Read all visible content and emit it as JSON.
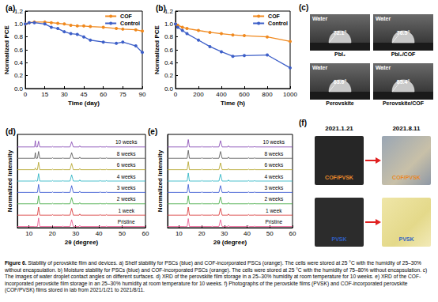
{
  "chart_data": [
    {
      "type": "line",
      "title": "(a)",
      "xlabel": "Time (day)",
      "ylabel": "Normalized PCE",
      "xlim": [
        0,
        90
      ],
      "xticks": [
        0,
        15,
        30,
        45,
        60,
        75,
        90
      ],
      "ylim": [
        0,
        1.2
      ],
      "yticks": [
        {
          "value": 0,
          "label": "0.0"
        },
        0.2,
        0.4,
        0.6,
        0.8,
        {
          "value": 1,
          "label": "1.0"
        },
        1.2
      ],
      "grid": false,
      "legend": "upper right",
      "x": [
        0,
        3,
        7,
        15,
        20,
        25,
        30,
        35,
        40,
        45,
        50,
        60,
        70,
        75,
        85,
        90
      ],
      "series": [
        {
          "name": "COF",
          "color": "#f0891e",
          "marker": "circle",
          "values": [
            1.0,
            1.02,
            1.03,
            1.03,
            1.02,
            1.01,
            1.0,
            0.98,
            0.97,
            0.97,
            0.96,
            0.95,
            0.93,
            0.92,
            0.91,
            0.89
          ]
        },
        {
          "name": "Control",
          "color": "#3d5fc8",
          "marker": "circle",
          "values": [
            1.0,
            1.02,
            1.02,
            1.0,
            0.95,
            0.93,
            0.88,
            0.85,
            0.84,
            0.8,
            0.75,
            0.72,
            0.7,
            0.72,
            0.66,
            0.56
          ]
        }
      ]
    },
    {
      "type": "line",
      "title": "(b)",
      "xlabel": "Time (h)",
      "ylabel": "Normalized PCE",
      "xlim": [
        0,
        1000
      ],
      "xticks": [
        0,
        200,
        400,
        600,
        800,
        1000
      ],
      "ylim": [
        0,
        1.2
      ],
      "yticks": [
        {
          "value": 0,
          "label": "0.0"
        },
        0.2,
        0.4,
        0.6,
        0.8,
        {
          "value": 1,
          "label": "1.0"
        },
        1.2
      ],
      "grid": false,
      "legend": "upper right",
      "x": [
        0,
        20,
        60,
        100,
        200,
        300,
        400,
        500,
        600,
        800,
        1000
      ],
      "series": [
        {
          "name": "COF",
          "color": "#f0891e",
          "marker": "circle",
          "values": [
            1.0,
            0.98,
            0.95,
            0.93,
            0.9,
            0.87,
            0.85,
            0.83,
            0.82,
            0.8,
            0.73
          ]
        },
        {
          "name": "Control",
          "color": "#3d5fc8",
          "marker": "circle",
          "values": [
            1.0,
            0.95,
            0.9,
            0.85,
            0.75,
            0.65,
            0.57,
            0.5,
            0.51,
            0.52,
            0.32
          ]
        }
      ]
    },
    {
      "type": "line",
      "title": "(d)",
      "xlabel": "2θ (degree)",
      "ylabel": "Normalized Intensity",
      "xlim": [
        5,
        60
      ],
      "xticks": [
        10,
        20,
        30,
        40,
        50,
        60
      ],
      "ylim": [
        0,
        8.2
      ],
      "tick_labels": "x",
      "grid": false,
      "legend": "inline",
      "x": [
        5,
        12.4,
        12.7,
        13.0,
        13.6,
        14.1,
        14.6,
        19.8,
        20.1,
        20.4,
        24.3,
        24.6,
        24.9,
        27.6,
        28.3,
        29.0,
        31.5,
        31.8,
        32.1,
        40.3,
        40.6,
        40.9,
        43.0,
        43.3,
        43.6,
        60
      ],
      "series": [
        {
          "name": "Pristine",
          "color": "#e8508a",
          "marker": "none",
          "values": [
            0.1,
            0.1,
            0.1,
            0.1,
            0.1,
            0.85,
            0.1,
            0.1,
            0.15,
            0.1,
            0.1,
            0.14,
            0.1,
            0.1,
            0.7,
            0.1,
            0.1,
            0.2,
            0.1,
            0.1,
            0.15,
            0.1,
            0.1,
            0.15,
            0.1,
            0.1
          ]
        },
        {
          "name": "1 week",
          "color": "#d62c2c",
          "marker": "none",
          "values": [
            1.1,
            1.1,
            1.1,
            1.1,
            1.1,
            1.8,
            1.1,
            1.1,
            1.15,
            1.1,
            1.1,
            1.14,
            1.1,
            1.1,
            1.7,
            1.1,
            1.1,
            1.2,
            1.1,
            1.1,
            1.15,
            1.1,
            1.1,
            1.15,
            1.1,
            1.1
          ]
        },
        {
          "name": "2 weeks",
          "color": "#3aa63a",
          "marker": "none",
          "values": [
            2.1,
            2.1,
            2.1,
            2.1,
            2.1,
            2.8,
            2.1,
            2.1,
            2.15,
            2.1,
            2.1,
            2.14,
            2.1,
            2.1,
            2.65,
            2.1,
            2.1,
            2.2,
            2.1,
            2.1,
            2.15,
            2.1,
            2.1,
            2.15,
            2.1,
            2.1
          ]
        },
        {
          "name": "3 weeks",
          "color": "#2f4fd0",
          "marker": "none",
          "values": [
            3.1,
            3.1,
            3.1,
            3.1,
            3.1,
            3.8,
            3.1,
            3.1,
            3.15,
            3.1,
            3.1,
            3.14,
            3.1,
            3.1,
            3.7,
            3.1,
            3.1,
            3.2,
            3.1,
            3.1,
            3.15,
            3.1,
            3.1,
            3.15,
            3.1,
            3.1
          ]
        },
        {
          "name": "4 weeks",
          "color": "#20b0c0",
          "marker": "none",
          "values": [
            4.1,
            4.1,
            4.15,
            4.1,
            4.1,
            4.75,
            4.1,
            4.1,
            4.15,
            4.1,
            4.1,
            4.14,
            4.1,
            4.1,
            4.65,
            4.1,
            4.1,
            4.2,
            4.1,
            4.1,
            4.15,
            4.1,
            4.1,
            4.15,
            4.1,
            4.1
          ]
        },
        {
          "name": "6 weeks",
          "color": "#b0a020",
          "marker": "none",
          "values": [
            5.1,
            5.1,
            5.25,
            5.1,
            5.1,
            5.75,
            5.1,
            5.1,
            5.15,
            5.1,
            5.1,
            5.14,
            5.1,
            5.1,
            5.65,
            5.1,
            5.1,
            5.2,
            5.1,
            5.1,
            5.15,
            5.1,
            5.1,
            5.15,
            5.1,
            5.1
          ]
        },
        {
          "name": "8 weeks",
          "color": "#505050",
          "marker": "none",
          "values": [
            6.1,
            6.1,
            6.6,
            6.1,
            6.1,
            6.7,
            6.1,
            6.1,
            6.15,
            6.1,
            6.1,
            6.14,
            6.1,
            6.1,
            6.6,
            6.1,
            6.1,
            6.2,
            6.1,
            6.1,
            6.15,
            6.1,
            6.1,
            6.15,
            6.1,
            6.1
          ]
        },
        {
          "name": "10 weeks",
          "color": "#8040b0",
          "marker": "none",
          "values": [
            7.1,
            7.1,
            7.65,
            7.1,
            7.1,
            7.6,
            7.1,
            7.1,
            7.15,
            7.1,
            7.1,
            7.14,
            7.1,
            7.1,
            7.55,
            7.1,
            7.1,
            7.2,
            7.1,
            7.1,
            7.15,
            7.1,
            7.1,
            7.15,
            7.1,
            7.1
          ]
        }
      ]
    },
    {
      "type": "line",
      "title": "(e)",
      "xlabel": "2θ (degree)",
      "ylabel": "Normalized Intensity",
      "xlim": [
        5,
        60
      ],
      "xticks": [
        10,
        20,
        30,
        40,
        50,
        60
      ],
      "ylim": [
        0,
        8.2
      ],
      "tick_labels": "x",
      "grid": false,
      "legend": "inline",
      "x": [
        5,
        12.4,
        12.7,
        13.0,
        13.6,
        14.1,
        14.6,
        19.8,
        20.1,
        20.4,
        24.3,
        24.6,
        24.9,
        27.6,
        28.3,
        29.0,
        31.5,
        31.8,
        32.1,
        40.3,
        40.6,
        40.9,
        43.0,
        43.3,
        43.6,
        60
      ],
      "series": [
        {
          "name": "Pristine",
          "color": "#e8508a",
          "marker": "none",
          "values": [
            0.1,
            0.1,
            0.1,
            0.1,
            0.1,
            0.8,
            0.1,
            0.1,
            0.15,
            0.1,
            0.1,
            0.14,
            0.1,
            0.1,
            0.7,
            0.1,
            0.1,
            0.2,
            0.1,
            0.1,
            0.15,
            0.1,
            0.1,
            0.15,
            0.1,
            0.1
          ]
        },
        {
          "name": "1 week",
          "color": "#d62c2c",
          "marker": "none",
          "values": [
            1.1,
            1.1,
            1.1,
            1.1,
            1.1,
            1.8,
            1.1,
            1.1,
            1.15,
            1.1,
            1.1,
            1.14,
            1.1,
            1.1,
            1.7,
            1.1,
            1.1,
            1.2,
            1.1,
            1.1,
            1.15,
            1.1,
            1.1,
            1.15,
            1.1,
            1.1
          ]
        },
        {
          "name": "2 weeks",
          "color": "#3aa63a",
          "marker": "none",
          "values": [
            2.1,
            2.1,
            2.1,
            2.1,
            2.1,
            2.8,
            2.1,
            2.1,
            2.15,
            2.1,
            2.1,
            2.14,
            2.1,
            2.1,
            2.7,
            2.1,
            2.1,
            2.2,
            2.1,
            2.1,
            2.15,
            2.1,
            2.1,
            2.15,
            2.1,
            2.1
          ]
        },
        {
          "name": "3 weeks",
          "color": "#2f4fd0",
          "marker": "none",
          "values": [
            3.1,
            3.1,
            3.1,
            3.1,
            3.1,
            3.8,
            3.1,
            3.1,
            3.15,
            3.1,
            3.1,
            3.14,
            3.1,
            3.1,
            3.7,
            3.1,
            3.1,
            3.2,
            3.1,
            3.1,
            3.15,
            3.1,
            3.1,
            3.15,
            3.1,
            3.1
          ]
        },
        {
          "name": "4 weeks",
          "color": "#20b0c0",
          "marker": "none",
          "values": [
            4.1,
            4.1,
            4.1,
            4.1,
            4.1,
            4.8,
            4.1,
            4.1,
            4.15,
            4.1,
            4.1,
            4.14,
            4.1,
            4.1,
            4.7,
            4.1,
            4.1,
            4.2,
            4.1,
            4.1,
            4.15,
            4.1,
            4.1,
            4.15,
            4.1,
            4.1
          ]
        },
        {
          "name": "6 weeks",
          "color": "#b0a020",
          "marker": "none",
          "values": [
            5.1,
            5.1,
            5.1,
            5.1,
            5.1,
            5.8,
            5.1,
            5.1,
            5.15,
            5.1,
            5.1,
            5.14,
            5.1,
            5.1,
            5.7,
            5.1,
            5.1,
            5.2,
            5.1,
            5.1,
            5.15,
            5.1,
            5.1,
            5.15,
            5.1,
            5.1
          ]
        },
        {
          "name": "8 weeks",
          "color": "#505050",
          "marker": "none",
          "values": [
            6.1,
            6.1,
            6.1,
            6.1,
            6.1,
            6.8,
            6.1,
            6.1,
            6.15,
            6.1,
            6.1,
            6.14,
            6.1,
            6.1,
            6.7,
            6.1,
            6.1,
            6.2,
            6.1,
            6.1,
            6.15,
            6.1,
            6.1,
            6.15,
            6.1,
            6.1
          ]
        },
        {
          "name": "10 weeks",
          "color": "#8040b0",
          "marker": "none",
          "values": [
            7.1,
            7.1,
            7.1,
            7.1,
            7.1,
            7.75,
            7.1,
            7.1,
            7.15,
            7.1,
            7.1,
            7.14,
            7.1,
            7.1,
            7.65,
            7.1,
            7.1,
            7.2,
            7.1,
            7.1,
            7.15,
            7.1,
            7.1,
            7.15,
            7.1,
            7.1
          ]
        }
      ]
    }
  ],
  "panel_c": {
    "title": "(c)",
    "images": [
      {
        "liquid": "Water",
        "angle": "72.1°",
        "surface": "PbI₂"
      },
      {
        "liquid": "Water",
        "angle": "76.5°",
        "surface": "PbI₂/COF"
      },
      {
        "liquid": "Water",
        "angle": "63.6°",
        "surface": "Perovskite"
      },
      {
        "liquid": "Water",
        "angle": "85.4°",
        "surface": "Perovskite/COF"
      }
    ]
  },
  "panel_f": {
    "title": "(f)",
    "dates": [
      "2021.1.21",
      "2021.8.11"
    ],
    "rows": [
      {
        "label": "COF/PVSK",
        "color": "#e8892b"
      },
      {
        "label": "PVSK",
        "color": "#2f5fc4"
      }
    ]
  },
  "caption": {
    "label": "Figure 6.",
    "text": "Stability of perovskite film and devices. a) Shelf stability for PSCs (blue) and COF-incorporated PSCs (orange). The cells were stored at 25 °C with the humidity of 25–30% without encapsulation. b) Moisture stability for PSCs (blue) and COF-incorporated PSCs (orange). The cells were stored at 25 °C with the humidity of 75–80% without encapsulation. c) The images of water droplet contact angles on different surfaces. d) XRD of the perovskite film storage in a 25–30% humidity at room temperature for 10 weeks. e) XRD of the COF-incorporated perovskite film storage in an 25–30% humidity at room temperature for 10 weeks. f) Photographs of the perovskite films (PVSK) and COF-incorporated perovskite (COF/PVSK) films stored in lab from 2021/1/21 to 2021/8/11."
  }
}
